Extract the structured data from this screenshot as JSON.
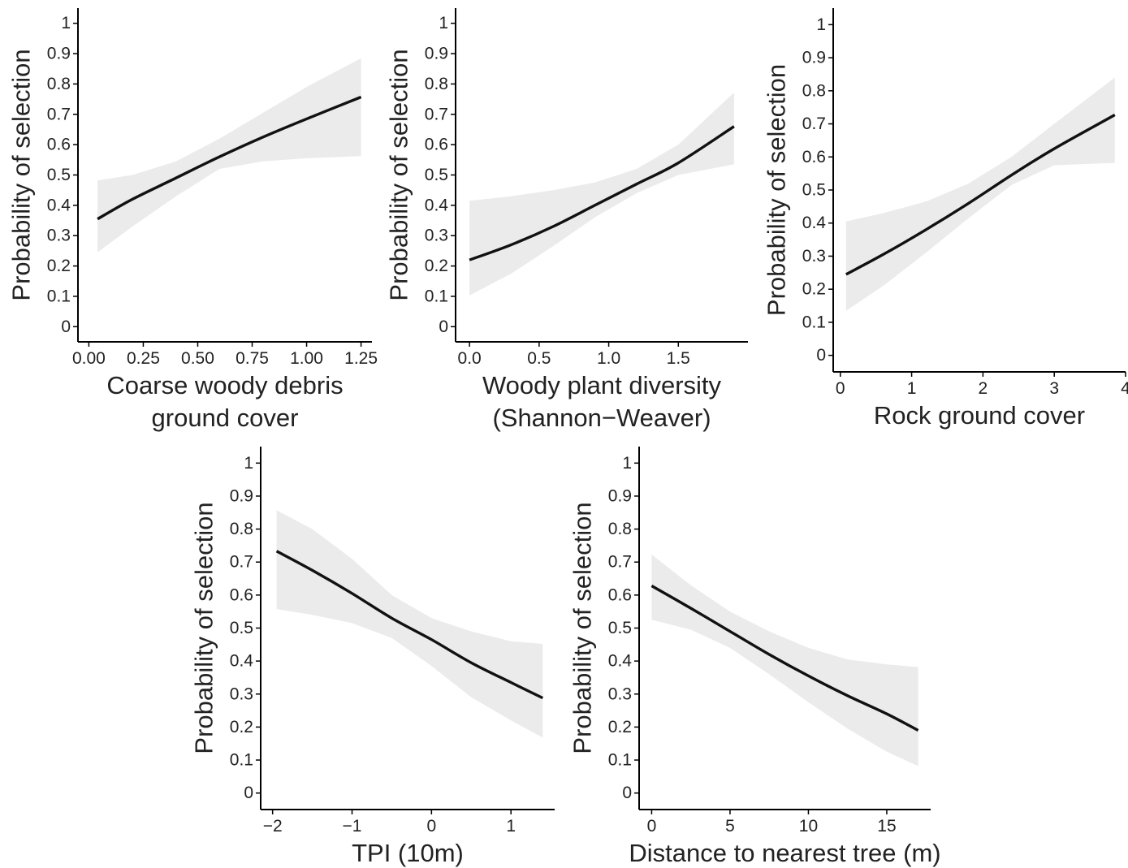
{
  "chart_data": [
    {
      "type": "line",
      "xlabel": "Coarse woody debris\nground cover",
      "ylabel": "Probability of selection",
      "xlim": [
        -0.05,
        1.3
      ],
      "ylim": [
        -0.05,
        1.05
      ],
      "xticks": [
        0,
        0.25,
        0.5,
        0.75,
        1,
        1.25
      ],
      "xtick_labels": [
        "0.00",
        "0.25",
        "0.50",
        "0.75",
        "1.00",
        "1.25"
      ],
      "yticks": [
        0,
        0.1,
        0.2,
        0.3,
        0.4,
        0.5,
        0.6,
        0.7,
        0.8,
        0.9,
        1
      ],
      "ytick_labels": [
        "0",
        "0.1",
        "0.2",
        "0.3",
        "0.4",
        "0.5",
        "0.6",
        "0.7",
        "0.8",
        "0.9",
        "1"
      ],
      "grid": false,
      "series": [
        {
          "x": [
            0.04,
            0.2,
            0.4,
            0.6,
            0.8,
            1.0,
            1.25
          ],
          "y": [
            0.355,
            0.42,
            0.49,
            0.56,
            0.625,
            0.685,
            0.757
          ],
          "ci_lower": [
            0.245,
            0.33,
            0.43,
            0.52,
            0.545,
            0.555,
            0.562
          ],
          "ci_upper": [
            0.482,
            0.5,
            0.545,
            0.62,
            0.705,
            0.79,
            0.885
          ]
        }
      ]
    },
    {
      "type": "line",
      "xlabel": "Woody plant diversity\n(Shannon−Weaver)",
      "ylabel": "Probability of selection",
      "xlim": [
        -0.1,
        2.0
      ],
      "ylim": [
        -0.05,
        1.05
      ],
      "xticks": [
        0,
        0.5,
        1,
        1.5
      ],
      "xtick_labels": [
        "0.0",
        "0.5",
        "1.0",
        "1.5"
      ],
      "yticks": [
        0,
        0.1,
        0.2,
        0.3,
        0.4,
        0.5,
        0.6,
        0.7,
        0.8,
        0.9,
        1
      ],
      "ytick_labels": [
        "0",
        "0.1",
        "0.2",
        "0.3",
        "0.4",
        "0.5",
        "0.6",
        "0.7",
        "0.8",
        "0.9",
        "1"
      ],
      "grid": false,
      "series": [
        {
          "x": [
            0,
            0.3,
            0.6,
            0.9,
            1.2,
            1.5,
            1.9
          ],
          "y": [
            0.22,
            0.27,
            0.33,
            0.4,
            0.47,
            0.54,
            0.66
          ],
          "ci_lower": [
            0.103,
            0.175,
            0.265,
            0.36,
            0.44,
            0.5,
            0.535
          ],
          "ci_upper": [
            0.415,
            0.43,
            0.45,
            0.475,
            0.52,
            0.6,
            0.772
          ]
        }
      ]
    },
    {
      "type": "line",
      "xlabel": "Rock ground cover",
      "ylabel": "Probability of selection",
      "xlim": [
        -0.1,
        4.0
      ],
      "ylim": [
        -0.05,
        1.05
      ],
      "xticks": [
        0,
        1,
        2,
        3,
        4
      ],
      "xtick_labels": [
        "0",
        "1",
        "2",
        "3",
        "4"
      ],
      "yticks": [
        0,
        0.1,
        0.2,
        0.3,
        0.4,
        0.5,
        0.6,
        0.7,
        0.8,
        0.9,
        1
      ],
      "ytick_labels": [
        "0",
        "0.1",
        "0.2",
        "0.3",
        "0.4",
        "0.5",
        "0.6",
        "0.7",
        "0.8",
        "0.9",
        "1"
      ],
      "grid": false,
      "series": [
        {
          "x": [
            0.08,
            0.6,
            1.2,
            1.8,
            2.4,
            3.0,
            3.85
          ],
          "y": [
            0.245,
            0.305,
            0.38,
            0.46,
            0.545,
            0.625,
            0.727
          ],
          "ci_lower": [
            0.135,
            0.21,
            0.31,
            0.415,
            0.515,
            0.575,
            0.582
          ],
          "ci_upper": [
            0.405,
            0.43,
            0.465,
            0.52,
            0.6,
            0.7,
            0.84
          ]
        }
      ]
    },
    {
      "type": "line",
      "xlabel": "TPI (10m)",
      "ylabel": "Probability of selection",
      "xlim": [
        -2.15,
        1.55
      ],
      "ylim": [
        -0.05,
        1.05
      ],
      "xticks": [
        -2,
        -1,
        0,
        1
      ],
      "xtick_labels": [
        "−2",
        "−1",
        "0",
        "1"
      ],
      "yticks": [
        0,
        0.1,
        0.2,
        0.3,
        0.4,
        0.5,
        0.6,
        0.7,
        0.8,
        0.9,
        1
      ],
      "ytick_labels": [
        "0",
        "0.1",
        "0.2",
        "0.3",
        "0.4",
        "0.5",
        "0.6",
        "0.7",
        "0.8",
        "0.9",
        "1"
      ],
      "grid": false,
      "series": [
        {
          "x": [
            -1.95,
            -1.5,
            -1.0,
            -0.5,
            0.0,
            0.5,
            1.0,
            1.4
          ],
          "y": [
            0.733,
            0.675,
            0.605,
            0.53,
            0.465,
            0.395,
            0.335,
            0.288
          ],
          "ci_lower": [
            0.557,
            0.54,
            0.515,
            0.47,
            0.385,
            0.29,
            0.22,
            0.168
          ],
          "ci_upper": [
            0.857,
            0.8,
            0.71,
            0.6,
            0.53,
            0.49,
            0.46,
            0.452
          ]
        }
      ]
    },
    {
      "type": "line",
      "xlabel": "Distance to nearest tree (m)",
      "ylabel": "Probability of selection",
      "xlim": [
        -0.8,
        17.8
      ],
      "ylim": [
        -0.05,
        1.05
      ],
      "xticks": [
        0,
        5,
        10,
        15
      ],
      "xtick_labels": [
        "0",
        "5",
        "10",
        "15"
      ],
      "yticks": [
        0,
        0.1,
        0.2,
        0.3,
        0.4,
        0.5,
        0.6,
        0.7,
        0.8,
        0.9,
        1
      ],
      "ytick_labels": [
        "0",
        "0.1",
        "0.2",
        "0.3",
        "0.4",
        "0.5",
        "0.6",
        "0.7",
        "0.8",
        "0.9",
        "1"
      ],
      "grid": false,
      "series": [
        {
          "x": [
            0,
            2.5,
            5,
            7.5,
            10,
            12.5,
            15,
            17
          ],
          "y": [
            0.628,
            0.56,
            0.49,
            0.42,
            0.355,
            0.295,
            0.24,
            0.19
          ],
          "ci_lower": [
            0.525,
            0.495,
            0.44,
            0.36,
            0.275,
            0.195,
            0.125,
            0.082
          ],
          "ci_upper": [
            0.723,
            0.63,
            0.55,
            0.49,
            0.44,
            0.405,
            0.39,
            0.382
          ]
        }
      ]
    }
  ]
}
